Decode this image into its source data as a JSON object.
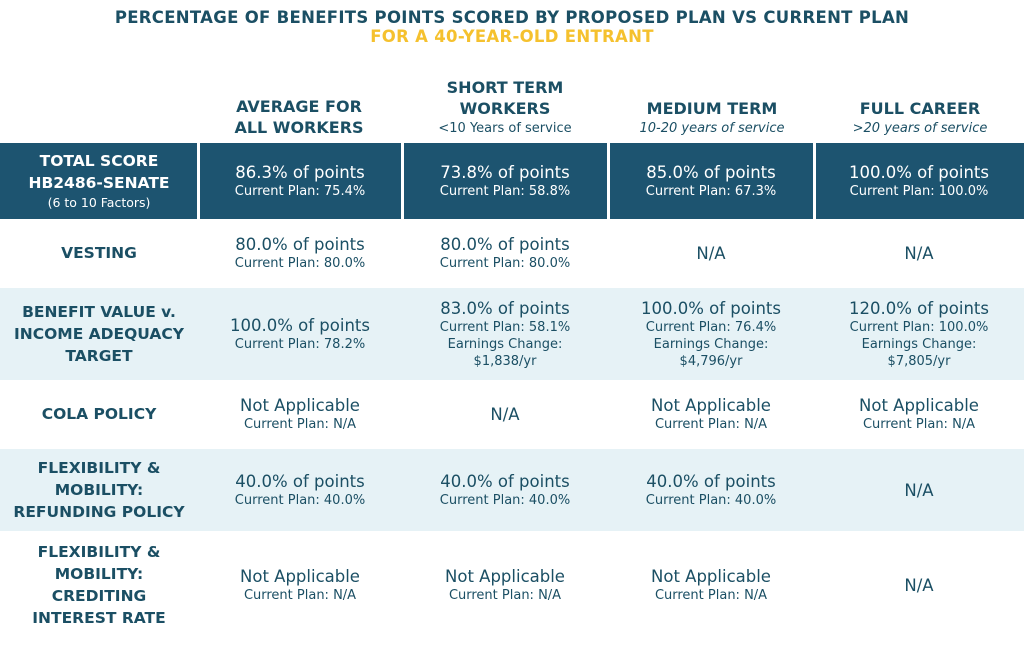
{
  "title": {
    "line1": "PERCENTAGE OF BENEFITS POINTS SCORED BY PROPOSED PLAN VS CURRENT PLAN",
    "line2": "FOR A 40-YEAR-OLD ENTRANT"
  },
  "columns": [
    {
      "name_lines": [
        "AVERAGE FOR",
        "ALL WORKERS"
      ],
      "sub": ""
    },
    {
      "name_lines": [
        "SHORT TERM",
        "WORKERS"
      ],
      "sub": "<10 Years of service"
    },
    {
      "name_lines": [
        "MEDIUM TERM"
      ],
      "sub": "10-20 years of service"
    },
    {
      "name_lines": [
        "FULL CAREER"
      ],
      "sub": ">20 years of service"
    }
  ],
  "rows": [
    {
      "label_lines": [
        "TOTAL SCORE",
        "HB2486-SENATE"
      ],
      "label_small": "(6 to 10 Factors)",
      "cells": [
        {
          "main": "86.3% of points",
          "lines": [
            "Current Plan: 75.4%"
          ]
        },
        {
          "main": "73.8% of points",
          "lines": [
            "Current Plan: 58.8%"
          ]
        },
        {
          "main": "85.0% of points",
          "lines": [
            "Current Plan: 67.3%"
          ]
        },
        {
          "main": "100.0% of points",
          "lines": [
            "Current Plan: 100.0%"
          ]
        }
      ]
    },
    {
      "label_lines": [
        "VESTING"
      ],
      "label_small": "",
      "cells": [
        {
          "main": "80.0% of points",
          "lines": [
            "Current Plan: 80.0%"
          ]
        },
        {
          "main": "80.0% of points",
          "lines": [
            "Current Plan: 80.0%"
          ]
        },
        {
          "main": "N/A",
          "lines": []
        },
        {
          "main": "N/A",
          "lines": []
        }
      ]
    },
    {
      "label_lines": [
        "BENEFIT VALUE v.",
        "INCOME ADEQUACY",
        "TARGET"
      ],
      "label_small": "",
      "cells": [
        {
          "main": "100.0% of points",
          "lines": [
            "Current Plan: 78.2%"
          ]
        },
        {
          "main": "83.0% of points",
          "lines": [
            "Current Plan: 58.1%",
            "Earnings Change:",
            "$1,838/yr"
          ]
        },
        {
          "main": "100.0% of points",
          "lines": [
            "Current Plan: 76.4%",
            "Earnings Change:",
            "$4,796/yr"
          ]
        },
        {
          "main": "120.0% of points",
          "lines": [
            "Current Plan: 100.0%",
            "Earnings Change:",
            "$7,805/yr"
          ]
        }
      ]
    },
    {
      "label_lines": [
        "COLA POLICY"
      ],
      "label_small": "",
      "cells": [
        {
          "main": "Not Applicable",
          "lines": [
            "Current Plan: N/A"
          ]
        },
        {
          "main": "N/A",
          "lines": []
        },
        {
          "main": "Not Applicable",
          "lines": [
            "Current Plan: N/A"
          ]
        },
        {
          "main": "Not Applicable",
          "lines": [
            "Current Plan: N/A"
          ]
        }
      ]
    },
    {
      "label_lines": [
        "FLEXIBILITY &",
        "MOBILITY:",
        "REFUNDING POLICY"
      ],
      "label_small": "",
      "cells": [
        {
          "main": "40.0% of points",
          "lines": [
            "Current Plan: 40.0%"
          ]
        },
        {
          "main": "40.0% of points",
          "lines": [
            "Current Plan: 40.0%"
          ]
        },
        {
          "main": "40.0% of points",
          "lines": [
            "Current Plan: 40.0%"
          ]
        },
        {
          "main": "N/A",
          "lines": []
        }
      ]
    },
    {
      "label_lines": [
        "FLEXIBILITY &",
        "MOBILITY:",
        "CREDITING",
        "INTEREST RATE"
      ],
      "label_small": "",
      "cells": [
        {
          "main": "Not Applicable",
          "lines": [
            "Current Plan: N/A"
          ]
        },
        {
          "main": "Not Applicable",
          "lines": [
            "Current Plan: N/A"
          ]
        },
        {
          "main": "Not Applicable",
          "lines": [
            "Current Plan: N/A"
          ]
        },
        {
          "main": "N/A",
          "lines": []
        }
      ]
    }
  ]
}
